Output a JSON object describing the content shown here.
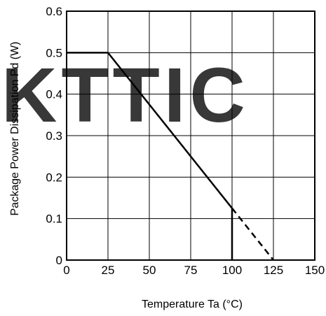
{
  "chart_data": {
    "type": "line",
    "xlabel": "Temperature Ta (°C)",
    "ylabel": "Package Power Dissipation Pd (W)",
    "xlim": [
      0,
      150
    ],
    "ylim": [
      0,
      0.6
    ],
    "x_ticks": [
      0,
      25,
      50,
      75,
      100,
      125,
      150
    ],
    "y_ticks": [
      0,
      0.1,
      0.2,
      0.3,
      0.4,
      0.5,
      0.6
    ],
    "x_tick_labels": [
      "0",
      "25",
      "50",
      "75",
      "100",
      "125",
      "150"
    ],
    "y_tick_labels": [
      "0",
      "0.1",
      "0.2",
      "0.3",
      "0.4",
      "0.5",
      "0.6"
    ],
    "grid": true,
    "series": [
      {
        "style": "solid",
        "x": [
          0,
          25,
          100,
          100
        ],
        "y": [
          0.5,
          0.5,
          0.125,
          0
        ]
      },
      {
        "style": "dashed",
        "x": [
          100,
          125
        ],
        "y": [
          0.125,
          0
        ]
      }
    ]
  },
  "watermark": {
    "text": "KTTIC",
    "color": "#e8665a"
  }
}
